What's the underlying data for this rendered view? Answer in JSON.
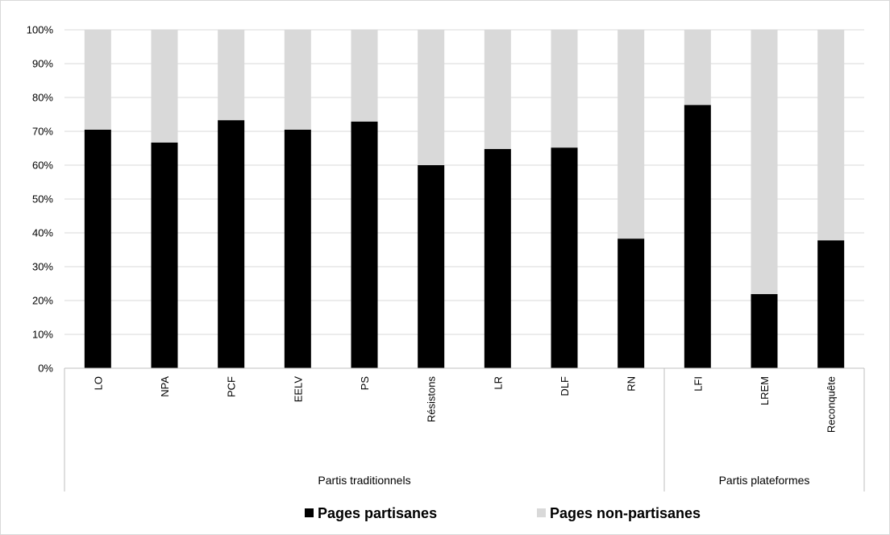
{
  "chart_data": {
    "type": "bar",
    "stacked": true,
    "categories": [
      "LO",
      "NPA",
      "PCF",
      "EELV",
      "PS",
      "Résistons",
      "LR",
      "DLF",
      "RN",
      "LFI",
      "LREM",
      "Reconquête"
    ],
    "groups": [
      {
        "label": "Partis traditionnels",
        "count": 9
      },
      {
        "label": "Partis plateformes",
        "count": 3
      }
    ],
    "series": [
      {
        "name": "Pages partisanes",
        "color": "#000000",
        "values": [
          70.5,
          66.7,
          73.3,
          70.5,
          72.9,
          60.0,
          64.8,
          65.2,
          38.3,
          77.8,
          21.9,
          37.8
        ]
      },
      {
        "name": "Pages non-partisanes",
        "color": "#d9d9d9",
        "values": [
          29.5,
          33.3,
          26.7,
          29.5,
          27.1,
          40.0,
          35.2,
          34.8,
          61.7,
          22.2,
          78.1,
          62.2
        ]
      }
    ],
    "ylim": [
      0,
      100
    ],
    "yticks": [
      "0%",
      "10%",
      "20%",
      "30%",
      "40%",
      "50%",
      "60%",
      "70%",
      "80%",
      "90%",
      "100%"
    ],
    "grid": true,
    "legend_position": "bottom"
  }
}
